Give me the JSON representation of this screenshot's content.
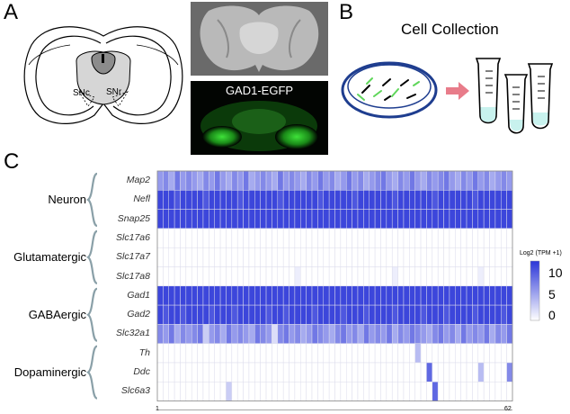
{
  "panels": {
    "A": "A",
    "B": "B",
    "C": "C"
  },
  "panelA": {
    "snc_label": "SNc",
    "snr_label": "SNr",
    "gfp_label": "GAD1-EGFP"
  },
  "panelB": {
    "title": "Cell Collection"
  },
  "chart_data": {
    "type": "heatmap",
    "x_range": [
      1,
      62
    ],
    "x_tick_labels": [
      "1",
      "62"
    ],
    "genes": [
      "Map2",
      "Nefl",
      "Snap25",
      "Slc17a6",
      "Slc17a7",
      "Slc17a8",
      "Gad1",
      "Gad2",
      "Slc32a1",
      "Th",
      "Ddc",
      "Slc6a3"
    ],
    "groups": [
      {
        "name": "Neuron",
        "genes": [
          "Map2",
          "Nefl",
          "Snap25"
        ]
      },
      {
        "name": "Glutamatergic",
        "genes": [
          "Slc17a6",
          "Slc17a7",
          "Slc17a8"
        ]
      },
      {
        "name": "GABAergic",
        "genes": [
          "Gad1",
          "Gad2",
          "Slc32a1"
        ]
      },
      {
        "name": "Dopaminergic",
        "genes": [
          "Th",
          "Ddc",
          "Slc6a3"
        ]
      }
    ],
    "colorbar": {
      "title": "Log2 (TPM +1)",
      "ticks": [
        "10",
        "5",
        "0"
      ],
      "range": [
        0,
        12
      ]
    },
    "colors": {
      "low": "#ffffff",
      "high": "#2a35d8"
    },
    "rows": {
      "Map2": [
        6,
        7,
        5,
        8,
        6,
        7,
        6,
        5,
        7,
        6,
        8,
        6,
        5,
        7,
        6,
        8,
        5,
        6,
        7,
        6,
        5,
        8,
        6,
        7,
        6,
        5,
        7,
        6,
        8,
        6,
        7,
        5,
        6,
        8,
        6,
        7,
        5,
        6,
        7,
        8,
        6,
        5,
        7,
        6,
        8,
        6,
        5,
        7,
        6,
        7,
        8,
        6,
        5,
        7,
        6,
        8,
        6,
        7,
        5,
        6,
        7,
        6
      ],
      "Nefl": [
        11,
        11,
        11,
        10,
        11,
        11,
        11,
        11,
        10,
        11,
        11,
        11,
        11,
        11,
        10,
        11,
        11,
        11,
        11,
        11,
        11,
        10,
        11,
        11,
        11,
        11,
        11,
        11,
        10,
        11,
        11,
        11,
        11,
        11,
        10,
        11,
        11,
        11,
        11,
        11,
        11,
        10,
        11,
        11,
        11,
        11,
        11,
        11,
        10,
        11,
        11,
        11,
        11,
        11,
        11,
        10,
        11,
        11,
        11,
        11,
        11,
        11
      ],
      "Snap25": [
        11,
        11,
        11,
        11,
        11,
        11,
        11,
        11,
        11,
        11,
        11,
        11,
        11,
        11,
        11,
        11,
        11,
        11,
        11,
        11,
        11,
        11,
        11,
        11,
        11,
        11,
        11,
        11,
        11,
        11,
        11,
        11,
        11,
        11,
        11,
        11,
        11,
        11,
        11,
        11,
        11,
        11,
        11,
        11,
        11,
        11,
        11,
        11,
        11,
        11,
        11,
        11,
        11,
        11,
        11,
        11,
        11,
        11,
        11,
        11,
        11,
        11
      ],
      "Slc17a6": [
        0,
        0,
        0,
        0,
        0,
        0,
        0,
        0,
        0,
        0,
        0,
        0,
        0,
        0,
        0,
        0,
        0,
        0,
        0,
        0,
        0,
        0,
        0,
        0,
        0,
        0,
        0,
        0,
        0,
        0,
        0,
        0,
        0,
        0,
        0,
        0,
        0,
        0,
        0,
        0,
        0,
        0,
        0,
        0,
        0,
        0,
        0,
        0,
        0,
        0,
        0,
        0,
        0,
        0,
        0,
        0,
        0,
        0,
        0,
        0,
        0,
        0
      ],
      "Slc17a7": [
        0,
        0,
        0,
        0,
        0,
        0,
        0,
        0,
        0,
        0,
        0,
        0,
        0,
        0,
        0,
        0,
        0,
        0,
        0,
        0,
        0,
        0,
        0,
        0,
        0,
        0,
        0,
        0,
        0,
        0,
        0,
        0,
        0,
        0,
        0,
        0,
        0,
        0,
        0,
        0,
        0,
        0,
        0,
        0,
        0,
        0,
        0,
        0,
        0,
        0,
        0,
        0,
        0,
        0,
        0,
        0,
        0,
        0,
        0,
        0,
        0,
        0
      ],
      "Slc17a8": [
        0,
        0,
        0,
        0,
        0,
        0,
        0,
        0,
        0,
        0,
        0,
        0,
        0,
        0,
        0,
        0,
        0,
        0,
        0,
        0,
        0,
        0,
        0,
        0,
        1,
        0,
        0,
        0,
        0,
        0,
        0,
        0,
        0,
        0,
        0,
        0,
        0,
        0,
        0,
        0,
        0,
        1,
        0,
        0,
        0,
        0,
        0,
        0,
        0,
        0,
        0,
        0,
        0,
        0,
        0,
        0,
        1,
        0,
        0,
        0,
        0,
        0
      ],
      "Gad1": [
        11,
        11,
        11,
        11,
        11,
        11,
        11,
        11,
        11,
        11,
        11,
        11,
        11,
        11,
        11,
        11,
        11,
        11,
        11,
        11,
        11,
        11,
        11,
        11,
        11,
        11,
        11,
        11,
        11,
        11,
        11,
        11,
        11,
        11,
        11,
        11,
        11,
        11,
        11,
        11,
        11,
        11,
        11,
        11,
        11,
        11,
        11,
        11,
        11,
        11,
        11,
        11,
        11,
        11,
        11,
        11,
        11,
        11,
        11,
        11,
        11,
        11
      ],
      "Gad2": [
        11,
        10,
        11,
        11,
        10,
        11,
        11,
        11,
        11,
        10,
        11,
        11,
        11,
        10,
        11,
        11,
        11,
        11,
        11,
        10,
        11,
        11,
        10,
        11,
        11,
        11,
        11,
        10,
        11,
        11,
        11,
        11,
        10,
        11,
        11,
        11,
        10,
        11,
        11,
        11,
        11,
        10,
        11,
        11,
        11,
        11,
        10,
        11,
        11,
        11,
        10,
        11,
        11,
        11,
        11,
        10,
        11,
        11,
        11,
        11,
        10,
        11
      ],
      "Slc32a1": [
        7,
        6,
        8,
        5,
        7,
        6,
        7,
        8,
        3,
        6,
        7,
        5,
        8,
        6,
        7,
        6,
        5,
        8,
        7,
        6,
        2,
        7,
        8,
        6,
        7,
        5,
        6,
        8,
        7,
        6,
        5,
        7,
        8,
        6,
        7,
        5,
        8,
        6,
        7,
        6,
        8,
        5,
        7,
        6,
        8,
        7,
        6,
        5,
        7,
        8,
        6,
        7,
        5,
        8,
        6,
        7,
        6,
        8,
        5,
        7,
        6,
        8
      ],
      "Th": [
        0,
        0,
        0,
        0,
        0,
        0,
        0,
        0,
        0,
        0,
        0,
        0,
        0,
        0,
        0,
        0,
        0,
        0,
        0,
        0,
        0,
        0,
        0,
        0,
        0,
        0,
        0,
        0,
        0,
        0,
        0,
        0,
        0,
        0,
        0,
        0,
        0,
        0,
        0,
        0,
        0,
        0,
        0,
        0,
        0,
        4,
        0,
        0,
        0,
        0,
        0,
        0,
        0,
        0,
        0,
        0,
        0,
        0,
        0,
        0,
        0,
        0
      ],
      "Ddc": [
        0,
        0,
        0,
        0,
        0,
        0,
        0,
        0,
        0,
        0,
        0,
        0,
        0,
        0,
        0,
        0,
        0,
        0,
        0,
        0,
        0,
        0,
        0,
        0,
        0,
        0,
        0,
        0,
        0,
        0,
        0,
        0,
        0,
        0,
        0,
        0,
        0,
        0,
        0,
        0,
        0,
        0,
        0,
        0,
        0,
        0,
        0,
        9,
        0,
        0,
        0,
        0,
        0,
        0,
        0,
        0,
        4,
        0,
        0,
        0,
        0,
        7
      ],
      "Slc6a3": [
        0,
        0,
        0,
        0,
        0,
        0,
        0,
        0,
        0,
        0,
        0,
        0,
        3,
        0,
        0,
        0,
        0,
        0,
        0,
        0,
        0,
        0,
        0,
        0,
        0,
        0,
        0,
        0,
        0,
        0,
        0,
        0,
        0,
        0,
        0,
        0,
        0,
        0,
        0,
        0,
        0,
        0,
        0,
        0,
        0,
        0,
        0,
        0,
        9,
        0,
        0,
        0,
        0,
        0,
        0,
        0,
        0,
        0,
        0,
        0,
        0,
        0
      ]
    }
  }
}
